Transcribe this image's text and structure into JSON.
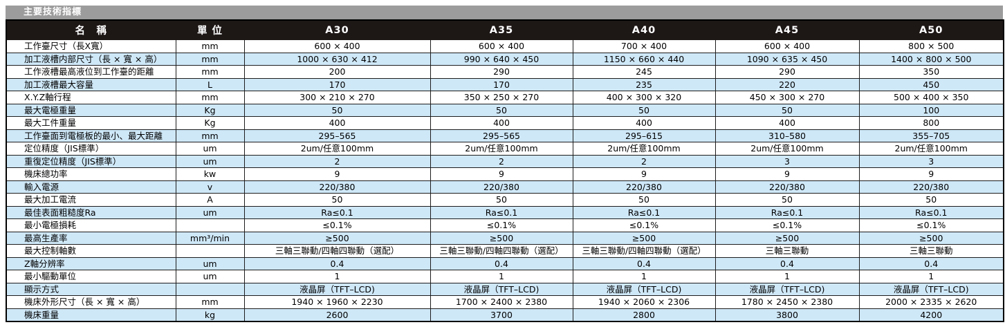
{
  "title": "主要技術指標",
  "colors": {
    "title_bar_bg": "#9c9c9c",
    "header_bg": "#1d1716",
    "header_text": "#ffffff",
    "row_alt_bg": "#cfe8f8",
    "border": "#1c1c1c"
  },
  "table": {
    "headers": [
      "名　稱",
      "單 位",
      "A30",
      "A35",
      "A40",
      "A45",
      "A50"
    ],
    "rows": [
      {
        "name": "工作臺尺寸（長X寬）",
        "unit": "mm",
        "values": [
          "600 × 400",
          "600 × 400",
          "700 × 400",
          "600 × 400",
          "800 × 500"
        ]
      },
      {
        "name": "加工液槽内部尺寸（長 × 寬 × 高）",
        "unit": "mm",
        "values": [
          "1000 × 630 × 412",
          "990 × 640 × 450",
          "1150 × 660 × 440",
          "1090 × 635 × 450",
          "1400 × 800 × 500"
        ]
      },
      {
        "name": "工作液槽最高液位到工作臺的距離",
        "unit": "mm",
        "values": [
          "200",
          "290",
          "245",
          "290",
          "350"
        ]
      },
      {
        "name": "加工液槽最大容量",
        "unit": "L",
        "values": [
          "170",
          "170",
          "235",
          "220",
          "450"
        ]
      },
      {
        "name": "X.Y.Z軸行程",
        "unit": "mm",
        "values": [
          "300 × 210 × 270",
          "350 × 250 × 270",
          "400 × 300 × 320",
          "450 × 300 × 270",
          "500 × 400 × 350"
        ]
      },
      {
        "name": "最大電極重量",
        "unit": "Kg",
        "values": [
          "50",
          "50",
          "50",
          "50",
          "100"
        ]
      },
      {
        "name": "最大工件重量",
        "unit": "Kg",
        "values": [
          "400",
          "400",
          "400",
          "400",
          "800"
        ]
      },
      {
        "name": "工作臺面到電極板的最小、最大距離",
        "unit": "mm",
        "values": [
          "295–565",
          "295–565",
          "295–615",
          "310–580",
          "355–705"
        ]
      },
      {
        "name": "定位精度（JIS標準）",
        "unit": "um",
        "values": [
          "2um/任意100mm",
          "2um/任意100mm",
          "2um/任意100mm",
          "2um/任意100mm",
          "2um/任意100mm"
        ]
      },
      {
        "name": "重復定位精度（JIS標準）",
        "unit": "um",
        "values": [
          "2",
          "2",
          "2",
          "3",
          "3"
        ]
      },
      {
        "name": "機床總功率",
        "unit": "kw",
        "values": [
          "9",
          "9",
          "9",
          "9",
          "9"
        ]
      },
      {
        "name": "輸入電源",
        "unit": "v",
        "values": [
          "220/380",
          "220/380",
          "220/380",
          "220/380",
          "220/380"
        ]
      },
      {
        "name": "最大加工電流",
        "unit": "A",
        "values": [
          "50",
          "50",
          "50",
          "50",
          "50"
        ]
      },
      {
        "name": "最佳表面粗糙度Ra",
        "unit": "um",
        "values": [
          "Ra≤0.1",
          "Ra≤0.1",
          "Ra≤0.1",
          "Ra≤0.1",
          "Ra≤0.1"
        ]
      },
      {
        "name": "最小電極損耗",
        "unit": "",
        "values": [
          "≤0.1%",
          "≤0.1%",
          "≤0.1%",
          "≤0.1%",
          "≤0.1%"
        ]
      },
      {
        "name": "最高生產率",
        "unit": "mm³/min",
        "values": [
          "≥500",
          "≥500",
          "≥500",
          "≥500",
          "≥500"
        ]
      },
      {
        "name": "最大控制軸數",
        "unit": "",
        "values": [
          "三軸三聯動/四軸四聯動（選配）",
          "三軸三聯動/四軸四聯動（選配）",
          "三軸三聯動/四軸四聯動（選配）",
          "三軸三聯動",
          "三軸三聯動"
        ]
      },
      {
        "name": "Z軸分辨率",
        "unit": "um",
        "values": [
          "0.4",
          "0.4",
          "0.4",
          "0.4",
          "0.4"
        ]
      },
      {
        "name": "最小驅動單位",
        "unit": "um",
        "values": [
          "1",
          "1",
          "1",
          "1",
          "1"
        ]
      },
      {
        "name": "顯示方式",
        "unit": "",
        "values": [
          "液晶屏（TFT–LCD)",
          "液晶屏（TFT–LCD)",
          "液晶屏（TFT–LCD)",
          "液晶屏（TFT–LCD)",
          "液晶屏（TFT–LCD)"
        ]
      },
      {
        "name": "機床外形尺寸（長 × 寬 × 高）",
        "unit": "mm",
        "values": [
          "1940 × 1960 × 2230",
          "1700 × 2400 × 2380",
          "1940 × 2060 × 2306",
          "1780 × 2450 × 2380",
          "2000 × 2335 × 2620"
        ]
      },
      {
        "name": "機床重量",
        "unit": "kg",
        "values": [
          "2600",
          "3700",
          "2800",
          "3800",
          "4200"
        ]
      }
    ]
  }
}
